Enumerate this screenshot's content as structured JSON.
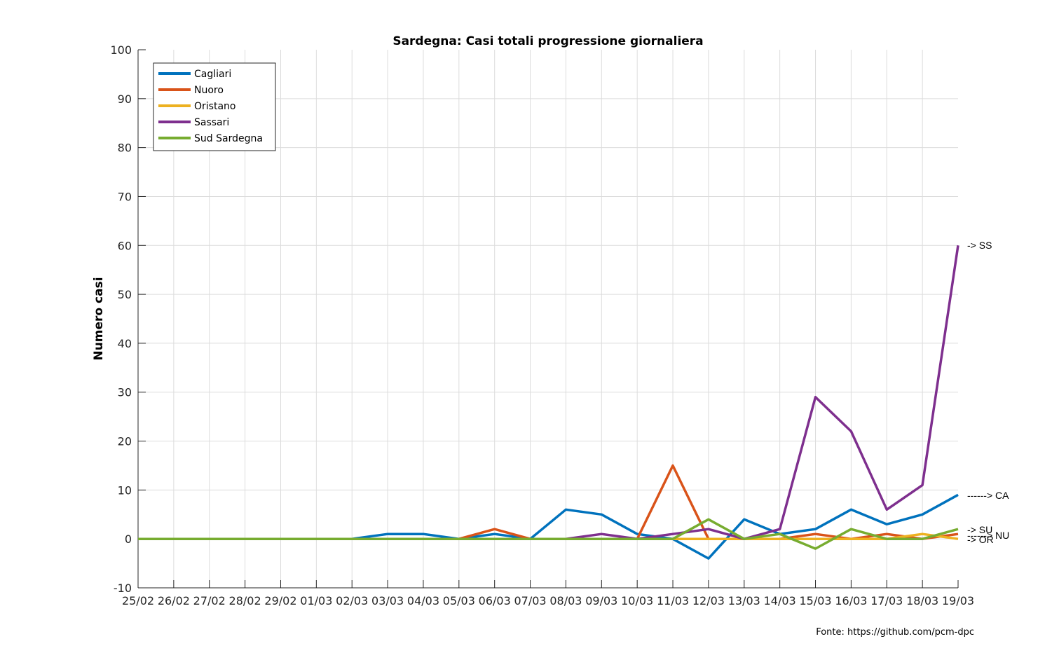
{
  "chart_data": {
    "type": "line",
    "title": "Sardegna: Casi totali progressione giornaliera",
    "ylabel": "Numero casi",
    "xlabel": "",
    "ylim": [
      -10,
      100
    ],
    "yticks": [
      -10,
      0,
      10,
      20,
      30,
      40,
      50,
      60,
      70,
      80,
      90,
      100
    ],
    "grid": true,
    "legend_position": "top-left",
    "x": [
      "25/02",
      "26/02",
      "27/02",
      "28/02",
      "29/02",
      "01/03",
      "02/03",
      "03/03",
      "04/03",
      "05/03",
      "06/03",
      "07/03",
      "08/03",
      "09/03",
      "10/03",
      "11/03",
      "12/03",
      "13/03",
      "14/03",
      "15/03",
      "16/03",
      "17/03",
      "18/03",
      "19/03"
    ],
    "series": [
      {
        "name": "Cagliari",
        "color": "#0072BD",
        "values": [
          0,
          0,
          0,
          0,
          0,
          0,
          0,
          1,
          1,
          0,
          1,
          0,
          6,
          5,
          1,
          0,
          -4,
          4,
          1,
          2,
          6,
          3,
          5,
          9
        ]
      },
      {
        "name": "Nuoro",
        "color": "#D95319",
        "values": [
          0,
          0,
          0,
          0,
          0,
          0,
          0,
          0,
          0,
          0,
          2,
          0,
          0,
          0,
          0,
          15,
          0,
          0,
          0,
          1,
          0,
          1,
          0,
          1
        ]
      },
      {
        "name": "Oristano",
        "color": "#EDB120",
        "values": [
          0,
          0,
          0,
          0,
          0,
          0,
          0,
          0,
          0,
          0,
          0,
          0,
          0,
          0,
          0,
          0,
          0,
          0,
          0,
          0,
          0,
          0,
          1,
          0
        ]
      },
      {
        "name": "Sassari",
        "color": "#7E2F8E",
        "values": [
          0,
          0,
          0,
          0,
          0,
          0,
          0,
          0,
          0,
          0,
          0,
          0,
          0,
          1,
          0,
          1,
          2,
          0,
          2,
          29,
          22,
          6,
          11,
          60
        ]
      },
      {
        "name": "Sud Sardegna",
        "color": "#77AC30",
        "values": [
          0,
          0,
          0,
          0,
          0,
          0,
          0,
          0,
          0,
          0,
          0,
          0,
          0,
          0,
          0,
          0,
          4,
          0,
          1,
          -2,
          2,
          0,
          0,
          2
        ]
      }
    ],
    "annotations": [
      {
        "text": "-> SS",
        "y": 60
      },
      {
        "text": "------> CA",
        "y": 9
      },
      {
        "text": "-> SU",
        "y": 2
      },
      {
        "text": "------> NU",
        "y": 1
      },
      {
        "text": "-> OR",
        "y": 0
      }
    ],
    "source": "Fonte: https://github.com/pcm-dpc"
  }
}
